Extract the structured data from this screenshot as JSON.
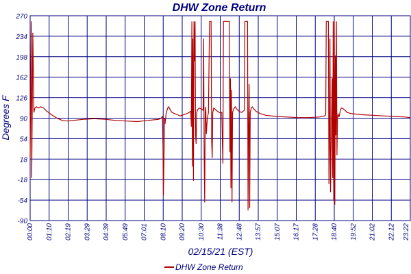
{
  "chart_data": {
    "type": "line",
    "title": "DHW Zone Return",
    "xlabel": "02/15/21 (EST)",
    "ylabel": "Degrees F",
    "ylim": [
      -90,
      270
    ],
    "y_ticks": [
      270,
      234,
      198,
      162,
      126,
      90,
      54,
      18,
      -18,
      -54,
      -90
    ],
    "x_ticks": [
      "00:00",
      "01:10",
      "02:19",
      "03:29",
      "04:39",
      "05:49",
      "07:01",
      "08:10",
      "09:20",
      "10:30",
      "11:38",
      "12:48",
      "13:57",
      "15:07",
      "16:17",
      "17:28",
      "18:40",
      "19:52",
      "21:02",
      "22:12",
      "23:22"
    ],
    "grid": true,
    "legend_position": "bottom-center",
    "series": [
      {
        "name": "DHW Zone Return",
        "color": "#b00000",
        "points": [
          [
            0,
            20
          ],
          [
            2,
            260
          ],
          [
            3,
            -15
          ],
          [
            5,
            240
          ],
          [
            7,
            100
          ],
          [
            9,
            108
          ],
          [
            12,
            110
          ],
          [
            15,
            108
          ],
          [
            20,
            110
          ],
          [
            25,
            108
          ],
          [
            30,
            103
          ],
          [
            40,
            96
          ],
          [
            50,
            90
          ],
          [
            60,
            86
          ],
          [
            70,
            85
          ],
          [
            80,
            86
          ],
          [
            100,
            88
          ],
          [
            120,
            89
          ],
          [
            140,
            88
          ],
          [
            160,
            86
          ],
          [
            180,
            85
          ],
          [
            200,
            84
          ],
          [
            220,
            86
          ],
          [
            240,
            88
          ],
          [
            245,
            90
          ],
          [
            247,
            94
          ],
          [
            248,
            40
          ],
          [
            249,
            -46
          ],
          [
            250,
            20
          ],
          [
            251,
            90
          ],
          [
            252,
            80
          ],
          [
            254,
            98
          ],
          [
            256,
            105
          ],
          [
            258,
            110
          ],
          [
            260,
            108
          ],
          [
            262,
            104
          ],
          [
            265,
            100
          ],
          [
            270,
            98
          ],
          [
            275,
            96
          ],
          [
            280,
            94
          ],
          [
            290,
            97
          ],
          [
            295,
            99
          ],
          [
            300,
            102
          ],
          [
            301,
            75
          ],
          [
            302,
            260
          ],
          [
            303,
            5
          ],
          [
            304,
            230
          ],
          [
            305,
            -20
          ],
          [
            306,
            260
          ],
          [
            307,
            190
          ],
          [
            308,
            260
          ],
          [
            309,
            60
          ],
          [
            310,
            45
          ],
          [
            311,
            100
          ],
          [
            313,
            105
          ],
          [
            316,
            108
          ],
          [
            320,
            106
          ],
          [
            323,
            104
          ],
          [
            324,
            230
          ],
          [
            325,
            30
          ],
          [
            326,
            -58
          ],
          [
            327,
            100
          ],
          [
            328,
            110
          ],
          [
            329,
            62
          ],
          [
            331,
            90
          ],
          [
            333,
            100
          ],
          [
            335,
            260
          ],
          [
            337,
            260
          ],
          [
            338,
            260
          ],
          [
            339,
            50
          ],
          [
            340,
            20
          ],
          [
            341,
            100
          ],
          [
            343,
            108
          ],
          [
            346,
            105
          ],
          [
            350,
            102
          ],
          [
            355,
            99
          ],
          [
            358,
            100
          ],
          [
            359,
            50
          ],
          [
            360,
            10
          ],
          [
            361,
            260
          ],
          [
            372,
            260
          ],
          [
            373,
            30
          ],
          [
            374,
            160
          ],
          [
            375,
            -33
          ],
          [
            376,
            140
          ],
          [
            377,
            -58
          ],
          [
            378,
            100
          ],
          [
            380,
            106
          ],
          [
            383,
            110
          ],
          [
            386,
            106
          ],
          [
            390,
            102
          ],
          [
            395,
            100
          ],
          [
            400,
            104
          ],
          [
            401,
            260
          ],
          [
            405,
            260
          ],
          [
            406,
            260
          ],
          [
            407,
            -72
          ],
          [
            408,
            70
          ],
          [
            409,
            150
          ],
          [
            410,
            -68
          ],
          [
            411,
            100
          ],
          [
            413,
            108
          ],
          [
            415,
            110
          ],
          [
            418,
            106
          ],
          [
            422,
            102
          ],
          [
            430,
            98
          ],
          [
            440,
            95
          ],
          [
            460,
            93
          ],
          [
            480,
            92
          ],
          [
            500,
            91
          ],
          [
            520,
            91
          ],
          [
            540,
            92
          ],
          [
            550,
            94
          ],
          [
            552,
            96
          ],
          [
            553,
            260
          ],
          [
            557,
            260
          ],
          [
            558,
            -26
          ],
          [
            559,
            60
          ],
          [
            560,
            230
          ],
          [
            561,
            -40
          ],
          [
            564,
            160
          ],
          [
            565,
            -15
          ],
          [
            566,
            260
          ],
          [
            567,
            -55
          ],
          [
            568,
            260
          ],
          [
            569,
            -62
          ],
          [
            570,
            200
          ],
          [
            571,
            60
          ],
          [
            572,
            260
          ],
          [
            573,
            25
          ],
          [
            574,
            90
          ],
          [
            575,
            98
          ],
          [
            577,
            92
          ],
          [
            579,
            102
          ],
          [
            581,
            108
          ],
          [
            584,
            107
          ],
          [
            588,
            104
          ],
          [
            592,
            100
          ],
          [
            600,
            98
          ],
          [
            620,
            96
          ],
          [
            640,
            95
          ],
          [
            660,
            94
          ],
          [
            680,
            93
          ],
          [
            700,
            92
          ],
          [
            710,
            91
          ]
        ]
      }
    ],
    "x_domain": [
      0,
      710
    ]
  }
}
